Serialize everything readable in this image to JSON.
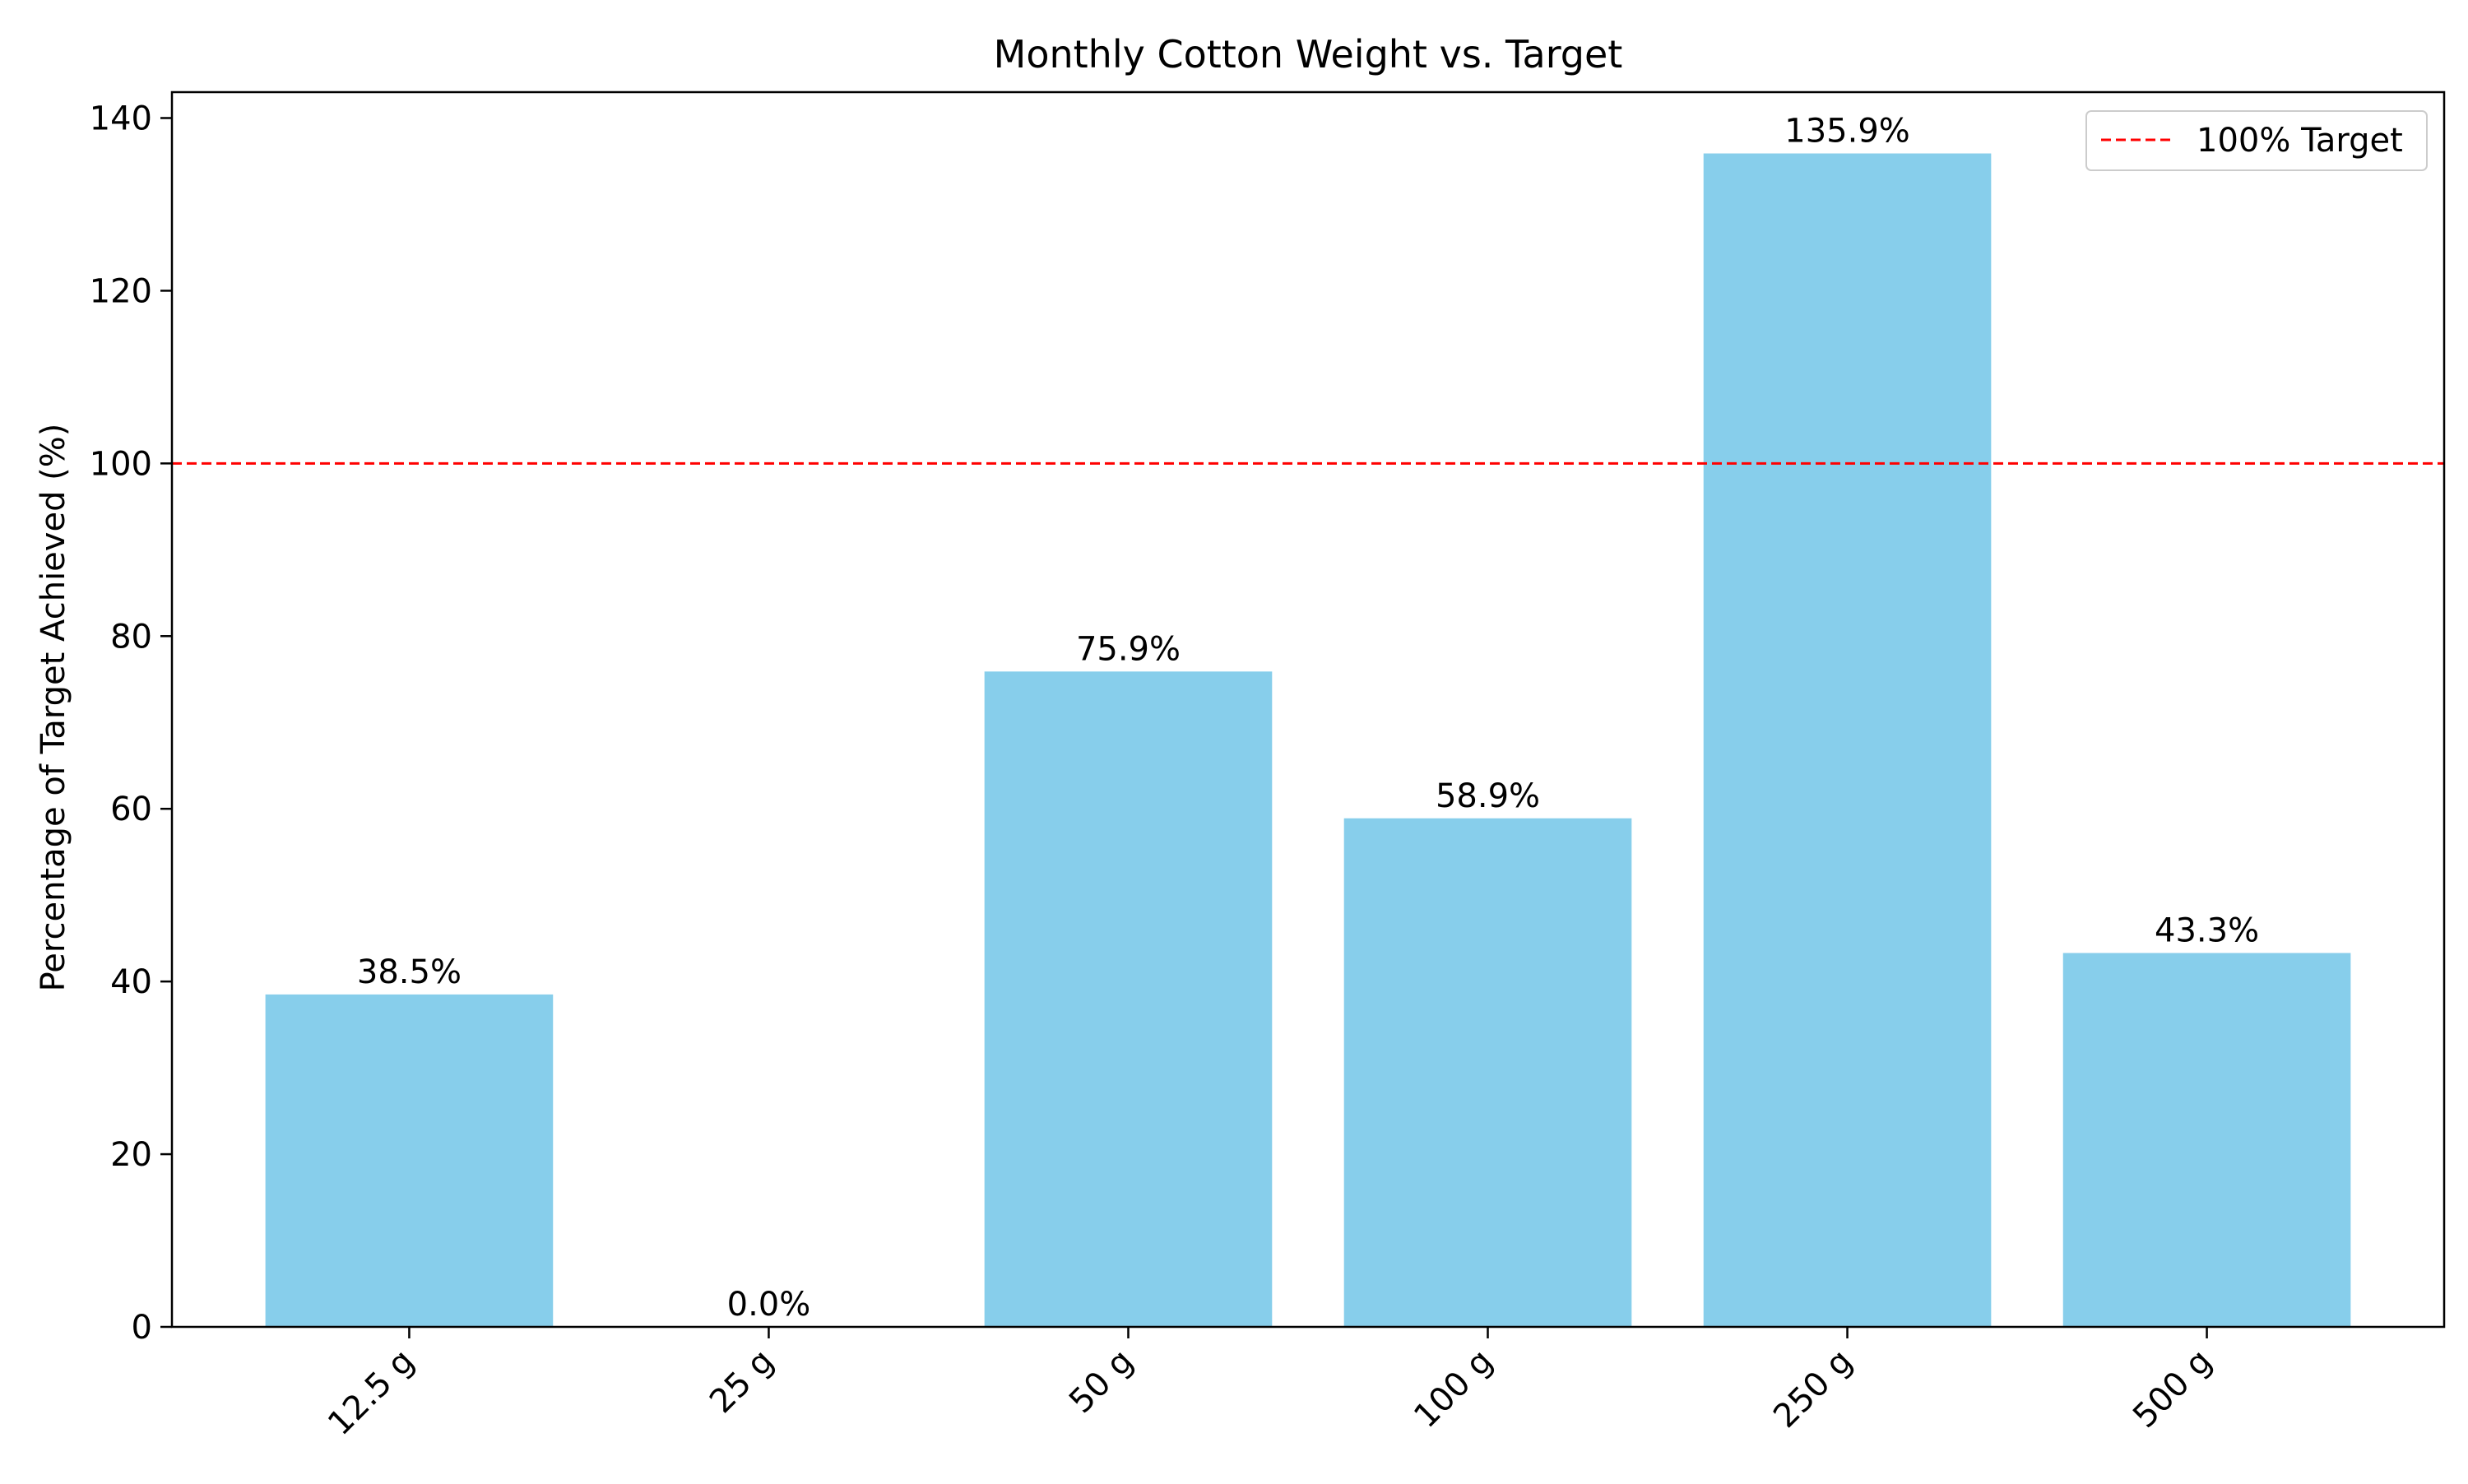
{
  "chart_data": {
    "type": "bar",
    "title": "Monthly Cotton Weight vs. Target",
    "xlabel": "",
    "ylabel": "Percentage of Target Achieved (%)",
    "categories": [
      "12.5 g",
      "25 g",
      "50 g",
      "100 g",
      "250 g",
      "500 g"
    ],
    "values": [
      38.5,
      0.0,
      75.9,
      58.9,
      135.9,
      43.3
    ],
    "data_labels": [
      "38.5%",
      "0.0%",
      "75.9%",
      "58.9%",
      "135.9%",
      "43.3%"
    ],
    "ylim": [
      0,
      143
    ],
    "yticks": [
      0,
      20,
      40,
      60,
      80,
      100,
      120,
      140
    ],
    "reference_line": {
      "value": 100,
      "label": "100% Target",
      "color": "#ff0000",
      "style": "dashed"
    },
    "bar_color": "#87ceeb",
    "grid": false,
    "legend": {
      "position": "top-right",
      "entries": [
        "100% Target"
      ]
    }
  }
}
